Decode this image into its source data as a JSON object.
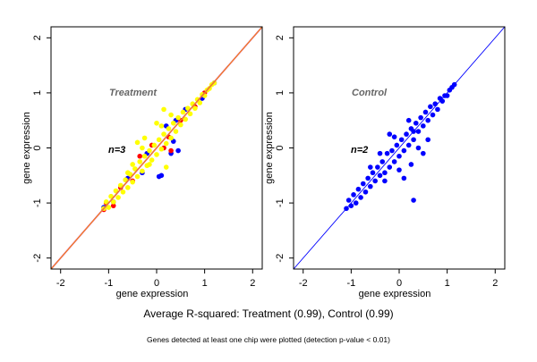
{
  "caption": "Average R-squared: Treatment (0.99), Control (0.99)",
  "footnote": "Genes detected at least one chip were plotted (detection p-value < 0.01)",
  "chart_data": [
    {
      "type": "scatter",
      "title": "Treatment",
      "annotation": "n=3",
      "xlabel": "gene expression",
      "ylabel": "gene expression",
      "xlim": [
        -2.2,
        2.2
      ],
      "ylim": [
        -2.2,
        2.2
      ],
      "xticks": [
        "-2",
        "-1",
        "0",
        "1",
        "2"
      ],
      "yticks": [
        "-2",
        "-1",
        "0",
        "1",
        "2"
      ],
      "grid": false,
      "reference_lines": [
        {
          "slope": 1,
          "intercept": 0,
          "color": "#cc3399"
        },
        {
          "slope": 1,
          "intercept": 0,
          "color": "#ff9900"
        }
      ],
      "series": [
        {
          "color": "#0000ff",
          "points": [
            [
              -1.1,
              -1.08
            ],
            [
              -0.9,
              -0.98
            ],
            [
              -0.6,
              -0.55
            ],
            [
              -0.2,
              -0.1
            ],
            [
              0.2,
              0.4
            ],
            [
              0.4,
              0.5
            ],
            [
              0.3,
              -0.1
            ],
            [
              0.45,
              -0.05
            ],
            [
              0.35,
              0.12
            ],
            [
              0.1,
              -0.5
            ],
            [
              0.05,
              -0.52
            ],
            [
              0.6,
              0.7
            ],
            [
              0.95,
              0.9
            ],
            [
              1.2,
              1.18
            ],
            [
              -0.3,
              -0.45
            ]
          ]
        },
        {
          "color": "#ff0000",
          "points": [
            [
              -1.1,
              -1.12
            ],
            [
              -1.05,
              -1.0
            ],
            [
              -0.9,
              -1.05
            ],
            [
              -0.75,
              -0.72
            ],
            [
              -0.5,
              -0.6
            ],
            [
              -0.35,
              -0.15
            ],
            [
              -0.1,
              0.05
            ],
            [
              0.15,
              0.0
            ],
            [
              0.3,
              -0.05
            ],
            [
              0.25,
              0.2
            ],
            [
              0.5,
              0.5
            ],
            [
              0.8,
              0.75
            ],
            [
              1.0,
              1.0
            ]
          ]
        },
        {
          "color": "#ffff00",
          "points": [
            [
              -1.1,
              -1.1
            ],
            [
              -1.05,
              -0.98
            ],
            [
              -1.0,
              -1.08
            ],
            [
              -0.95,
              -0.88
            ],
            [
              -0.9,
              -0.98
            ],
            [
              -0.85,
              -0.78
            ],
            [
              -0.8,
              -0.9
            ],
            [
              -0.75,
              -0.68
            ],
            [
              -0.7,
              -0.8
            ],
            [
              -0.65,
              -0.58
            ],
            [
              -0.6,
              -0.72
            ],
            [
              -0.55,
              -0.48
            ],
            [
              -0.5,
              -0.62
            ],
            [
              -0.45,
              -0.38
            ],
            [
              -0.4,
              -0.52
            ],
            [
              -0.35,
              -0.25
            ],
            [
              -0.3,
              -0.42
            ],
            [
              -0.25,
              -0.15
            ],
            [
              -0.2,
              -0.32
            ],
            [
              -0.15,
              -0.05
            ],
            [
              -0.1,
              -0.22
            ],
            [
              -0.05,
              0.05
            ],
            [
              0,
              -0.12
            ],
            [
              0.05,
              0.15
            ],
            [
              0.1,
              -0.02
            ],
            [
              0.15,
              0.25
            ],
            [
              0.2,
              0.08
            ],
            [
              0.25,
              0.35
            ],
            [
              0.3,
              0.18
            ],
            [
              0.35,
              0.45
            ],
            [
              0.4,
              0.3
            ],
            [
              0.45,
              0.55
            ],
            [
              0.5,
              0.42
            ],
            [
              0.55,
              0.65
            ],
            [
              0.6,
              0.52
            ],
            [
              0.65,
              0.72
            ],
            [
              0.7,
              0.62
            ],
            [
              0.75,
              0.8
            ],
            [
              0.8,
              0.72
            ],
            [
              0.85,
              0.88
            ],
            [
              0.9,
              0.82
            ],
            [
              0.95,
              0.97
            ],
            [
              1.0,
              0.95
            ],
            [
              1.05,
              1.05
            ],
            [
              1.1,
              1.08
            ],
            [
              1.15,
              1.15
            ],
            [
              1.2,
              1.18
            ],
            [
              -0.25,
              0.18
            ],
            [
              -0.4,
              0.1
            ],
            [
              0.0,
              0.45
            ],
            [
              0.15,
              0.7
            ],
            [
              -0.15,
              -0.3
            ],
            [
              0.2,
              -0.35
            ],
            [
              -0.3,
              0.0
            ],
            [
              -0.5,
              -0.3
            ],
            [
              0.1,
              0.4
            ],
            [
              -0.6,
              -0.45
            ],
            [
              0.3,
              0.6
            ]
          ]
        }
      ]
    },
    {
      "type": "scatter",
      "title": "Control",
      "annotation": "n=2",
      "xlabel": "gene expression",
      "ylabel": "gene expression",
      "xlim": [
        -2.2,
        2.2
      ],
      "ylim": [
        -2.2,
        2.2
      ],
      "xticks": [
        "-2",
        "-1",
        "0",
        "1",
        "2"
      ],
      "yticks": [
        "-2",
        "-1",
        "0",
        "1",
        "2"
      ],
      "grid": false,
      "reference_lines": [
        {
          "slope": 1,
          "intercept": 0,
          "color": "#0000ff"
        }
      ],
      "series": [
        {
          "color": "#0000ff",
          "points": [
            [
              -1.1,
              -1.1
            ],
            [
              -1.05,
              -0.95
            ],
            [
              -1.0,
              -1.05
            ],
            [
              -0.95,
              -0.85
            ],
            [
              -0.9,
              -1.0
            ],
            [
              -0.85,
              -0.75
            ],
            [
              -0.8,
              -0.9
            ],
            [
              -0.75,
              -0.65
            ],
            [
              -0.7,
              -0.8
            ],
            [
              -0.65,
              -0.55
            ],
            [
              -0.6,
              -0.7
            ],
            [
              -0.55,
              -0.45
            ],
            [
              -0.5,
              -0.6
            ],
            [
              -0.45,
              -0.35
            ],
            [
              -0.4,
              -0.5
            ],
            [
              -0.35,
              -0.25
            ],
            [
              -0.3,
              -0.45
            ],
            [
              -0.25,
              -0.1
            ],
            [
              -0.2,
              -0.35
            ],
            [
              -0.15,
              -0.05
            ],
            [
              -0.1,
              -0.25
            ],
            [
              -0.05,
              0.05
            ],
            [
              0,
              -0.15
            ],
            [
              0.05,
              0.15
            ],
            [
              0.1,
              -0.05
            ],
            [
              0.15,
              0.25
            ],
            [
              0.2,
              0.05
            ],
            [
              0.25,
              0.35
            ],
            [
              0.3,
              0.15
            ],
            [
              0.35,
              0.45
            ],
            [
              0.4,
              0.3
            ],
            [
              0.45,
              0.55
            ],
            [
              0.5,
              0.4
            ],
            [
              0.55,
              0.65
            ],
            [
              0.6,
              0.5
            ],
            [
              0.65,
              0.75
            ],
            [
              0.7,
              0.6
            ],
            [
              0.75,
              0.8
            ],
            [
              0.8,
              0.7
            ],
            [
              0.85,
              0.9
            ],
            [
              0.9,
              0.85
            ],
            [
              0.95,
              0.95
            ],
            [
              1.0,
              0.95
            ],
            [
              1.05,
              1.05
            ],
            [
              1.1,
              1.1
            ],
            [
              1.15,
              1.15
            ],
            [
              0.3,
              -0.95
            ],
            [
              0.1,
              -0.55
            ],
            [
              0.25,
              -0.3
            ],
            [
              0.5,
              -0.1
            ],
            [
              0.3,
              0.3
            ],
            [
              -0.2,
              0.25
            ],
            [
              -0.4,
              -0.1
            ],
            [
              0.6,
              0.15
            ],
            [
              -0.6,
              -0.35
            ],
            [
              0.0,
              -0.4
            ],
            [
              -0.3,
              -0.6
            ],
            [
              0.2,
              0.5
            ],
            [
              -0.1,
              0.2
            ],
            [
              0.4,
              0.0
            ]
          ]
        }
      ]
    }
  ]
}
